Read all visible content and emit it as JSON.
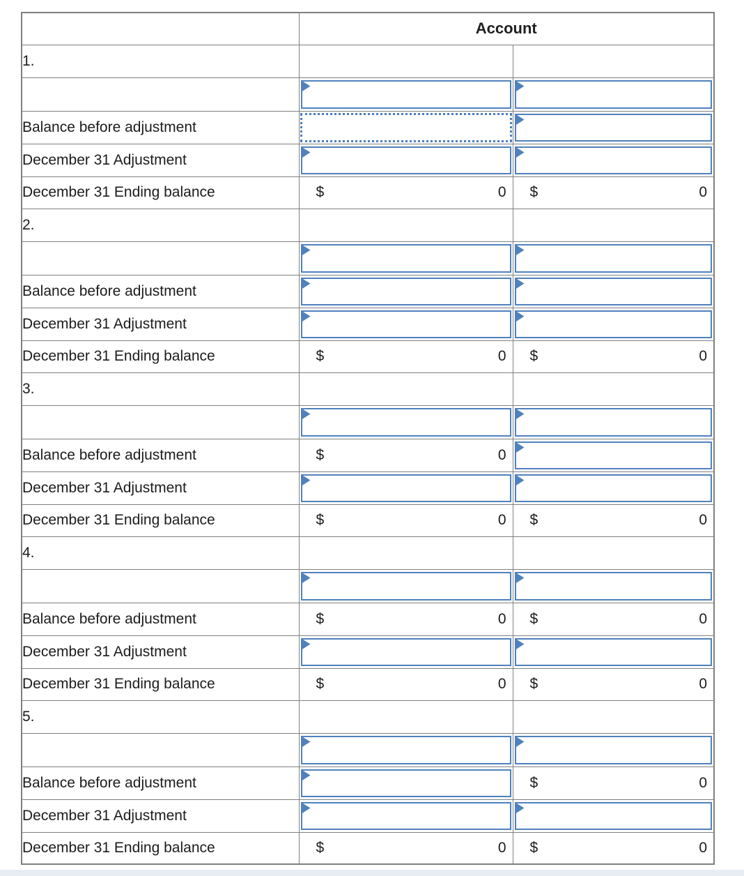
{
  "header": {
    "account_label": "Account"
  },
  "row_labels": {
    "balance_before": "Balance before adjustment",
    "adjustment": "December 31 Adjustment",
    "ending_balance": "December 31 Ending balance"
  },
  "colors": {
    "header_bg": "#8DB4E2",
    "input_border": "#4F81BD",
    "grid_line": "#808080",
    "total_rule": "#000000",
    "bottom_strip": "#E7EDF3"
  },
  "icons": {
    "flag": "dropdown-flag-icon"
  },
  "sections": [
    {
      "number": "1.",
      "body_rows": [
        {
          "label": "",
          "cells": [
            {
              "type": "input"
            },
            {
              "type": "input"
            }
          ]
        },
        {
          "label": "Balance before adjustment",
          "cells": [
            {
              "type": "selected"
            },
            {
              "type": "input"
            }
          ]
        },
        {
          "label": "December 31 Adjustment",
          "cells": [
            {
              "type": "input"
            },
            {
              "type": "input"
            }
          ]
        },
        {
          "label": "December 31 Ending balance",
          "total": true,
          "cells": [
            {
              "type": "money",
              "symbol": "$",
              "value": "0"
            },
            {
              "type": "money",
              "symbol": "$",
              "value": "0"
            }
          ]
        }
      ]
    },
    {
      "number": "2.",
      "body_rows": [
        {
          "label": "",
          "cells": [
            {
              "type": "input"
            },
            {
              "type": "input"
            }
          ]
        },
        {
          "label": "Balance before adjustment",
          "cells": [
            {
              "type": "input"
            },
            {
              "type": "input"
            }
          ]
        },
        {
          "label": "December 31 Adjustment",
          "cells": [
            {
              "type": "input"
            },
            {
              "type": "input"
            }
          ]
        },
        {
          "label": "December 31 Ending balance",
          "total": true,
          "cells": [
            {
              "type": "money",
              "symbol": "$",
              "value": "0"
            },
            {
              "type": "money",
              "symbol": "$",
              "value": "0"
            }
          ]
        }
      ]
    },
    {
      "number": "3.",
      "body_rows": [
        {
          "label": "",
          "cells": [
            {
              "type": "input"
            },
            {
              "type": "input"
            }
          ]
        },
        {
          "label": "Balance before adjustment",
          "cells": [
            {
              "type": "money",
              "symbol": "$",
              "value": "0"
            },
            {
              "type": "input"
            }
          ]
        },
        {
          "label": "December 31 Adjustment",
          "cells": [
            {
              "type": "input"
            },
            {
              "type": "input"
            }
          ]
        },
        {
          "label": "December 31 Ending balance",
          "total": true,
          "cells": [
            {
              "type": "money",
              "symbol": "$",
              "value": "0"
            },
            {
              "type": "money",
              "symbol": "$",
              "value": "0"
            }
          ]
        }
      ]
    },
    {
      "number": "4.",
      "body_rows": [
        {
          "label": "",
          "cells": [
            {
              "type": "input"
            },
            {
              "type": "input"
            }
          ]
        },
        {
          "label": "Balance before adjustment",
          "cells": [
            {
              "type": "money",
              "symbol": "$",
              "value": "0"
            },
            {
              "type": "money",
              "symbol": "$",
              "value": "0"
            }
          ]
        },
        {
          "label": "December 31 Adjustment",
          "cells": [
            {
              "type": "input"
            },
            {
              "type": "input"
            }
          ]
        },
        {
          "label": "December 31 Ending balance",
          "total": true,
          "cells": [
            {
              "type": "money",
              "symbol": "$",
              "value": "0"
            },
            {
              "type": "money",
              "symbol": "$",
              "value": "0"
            }
          ]
        }
      ]
    },
    {
      "number": "5.",
      "body_rows": [
        {
          "label": "",
          "cells": [
            {
              "type": "input"
            },
            {
              "type": "input"
            }
          ]
        },
        {
          "label": "Balance before adjustment",
          "cells": [
            {
              "type": "input"
            },
            {
              "type": "money",
              "symbol": "$",
              "value": "0"
            }
          ]
        },
        {
          "label": "December 31 Adjustment",
          "cells": [
            {
              "type": "input"
            },
            {
              "type": "input"
            }
          ]
        },
        {
          "label": "December 31 Ending balance",
          "total": true,
          "cells": [
            {
              "type": "money",
              "symbol": "$",
              "value": "0"
            },
            {
              "type": "money",
              "symbol": "$",
              "value": "0"
            }
          ]
        }
      ]
    }
  ]
}
